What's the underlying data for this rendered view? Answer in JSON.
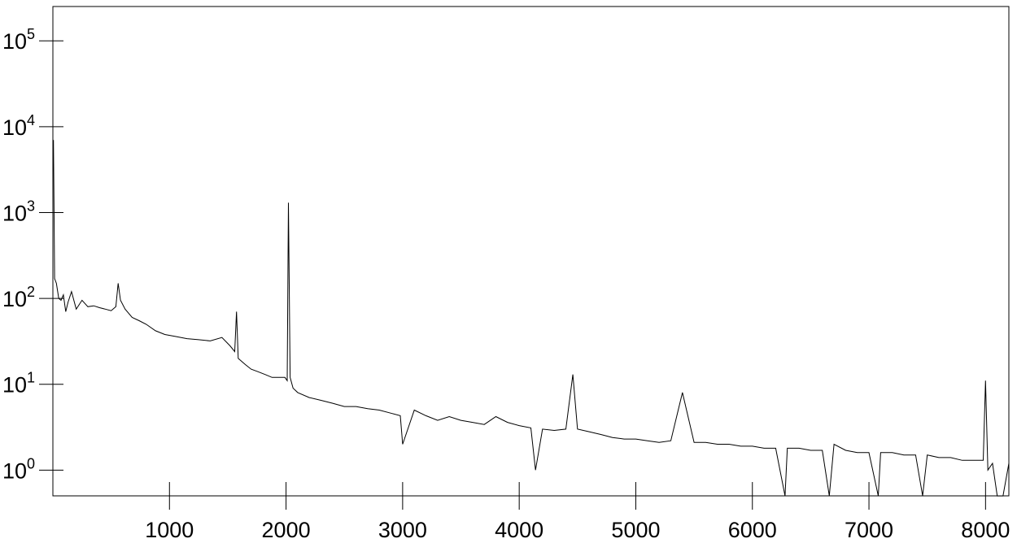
{
  "chart_data": {
    "type": "line",
    "title": "",
    "xlabel": "",
    "ylabel": "",
    "xlim": [
      0,
      8200
    ],
    "y_scale": "log",
    "ylim_log10": [
      -0.3,
      5.4
    ],
    "grid": false,
    "legend": "none",
    "x_ticks": [
      1000,
      2000,
      3000,
      4000,
      5000,
      6000,
      7000,
      8000
    ],
    "x_tick_labels": [
      "1000",
      "2000",
      "3000",
      "4000",
      "5000",
      "6000",
      "7000",
      "8000"
    ],
    "y_ticks": [
      {
        "value": 1,
        "base": "10",
        "exp": "0"
      },
      {
        "value": 10,
        "base": "10",
        "exp": "1"
      },
      {
        "value": 100,
        "base": "10",
        "exp": "2"
      },
      {
        "value": 1000,
        "base": "10",
        "exp": "3"
      },
      {
        "value": 10000,
        "base": "10",
        "exp": "4"
      },
      {
        "value": 100000,
        "base": "10",
        "exp": "5"
      }
    ],
    "line_color": "#000000",
    "series": [
      {
        "x": [
          5,
          15,
          30,
          50,
          70,
          90,
          110,
          130,
          160,
          200,
          250,
          300,
          350,
          400,
          450,
          500,
          540,
          560,
          580,
          620,
          680,
          740,
          800,
          880,
          960,
          1050,
          1150,
          1250,
          1350,
          1450,
          1520,
          1560,
          1575,
          1590,
          1650,
          1700,
          1760,
          1820,
          1880,
          1940,
          1990,
          2010,
          2020,
          2035,
          2060,
          2100,
          2200,
          2300,
          2400,
          2500,
          2600,
          2700,
          2800,
          2900,
          2980,
          3000,
          3100,
          3200,
          3300,
          3400,
          3500,
          3600,
          3700,
          3800,
          3900,
          4000,
          4100,
          4140,
          4200,
          4300,
          4400,
          4460,
          4500,
          4600,
          4700,
          4800,
          4900,
          5000,
          5100,
          5200,
          5300,
          5400,
          5500,
          5600,
          5700,
          5800,
          5900,
          6000,
          6100,
          6200,
          6280,
          6300,
          6400,
          6500,
          6600,
          6660,
          6700,
          6800,
          6900,
          7000,
          7080,
          7100,
          7200,
          7300,
          7400,
          7460,
          7500,
          7600,
          7700,
          7800,
          7900,
          7980,
          8000,
          8020,
          8060,
          8100,
          8150,
          8200
        ],
        "y": [
          7000,
          170,
          150,
          100,
          95,
          110,
          70,
          90,
          120,
          75,
          95,
          80,
          82,
          78,
          75,
          72,
          80,
          150,
          95,
          75,
          60,
          55,
          50,
          42,
          38,
          36,
          34,
          33,
          32,
          35,
          28,
          24,
          70,
          20,
          17,
          15,
          14,
          13,
          12,
          12,
          12,
          11,
          1300,
          12,
          9,
          8,
          7,
          6.5,
          6,
          5.5,
          5.5,
          5.2,
          5,
          4.6,
          4.3,
          2,
          5,
          4.3,
          3.8,
          4.2,
          3.8,
          3.6,
          3.4,
          4.2,
          3.6,
          3.3,
          3.1,
          1,
          3,
          2.9,
          3,
          13,
          3,
          2.8,
          2.6,
          2.4,
          2.3,
          2.3,
          2.2,
          2.1,
          2.2,
          8,
          2.1,
          2.1,
          2,
          2,
          1.9,
          1.9,
          1.8,
          1.8,
          0.5,
          1.8,
          1.8,
          1.7,
          1.7,
          0.5,
          2,
          1.7,
          1.6,
          1.6,
          0.5,
          1.6,
          1.6,
          1.5,
          1.5,
          0.5,
          1.5,
          1.4,
          1.4,
          1.3,
          1.3,
          1.3,
          11,
          1,
          1.2,
          0.5,
          0.5,
          1.2
        ]
      }
    ]
  }
}
